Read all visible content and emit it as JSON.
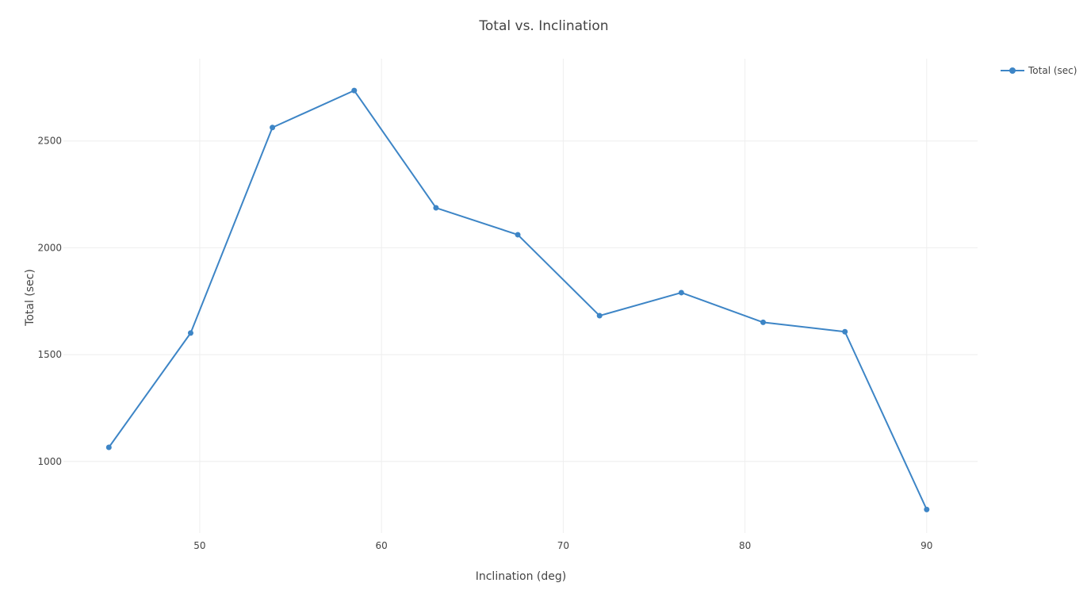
{
  "chart_data": {
    "type": "line",
    "title": "Total vs. Inclination",
    "xlabel": "Inclination (deg)",
    "ylabel": "Total (sec)",
    "xlim": [
      42.5,
      92.8
    ],
    "ylim": [
      665,
      2885
    ],
    "x_ticks": [
      50,
      60,
      70,
      80,
      90
    ],
    "y_ticks": [
      1000,
      1500,
      2000,
      2500
    ],
    "grid": true,
    "legend_position": "top-right",
    "series": [
      {
        "name": "Total (sec)",
        "color": "#3d85c6",
        "x": [
          45,
          49.5,
          54,
          58.5,
          63,
          67.5,
          72,
          76.5,
          81,
          85.5,
          90
        ],
        "y": [
          1066,
          1601,
          2563,
          2736,
          2187,
          2061,
          1682,
          1790,
          1651,
          1607,
          775
        ]
      }
    ]
  }
}
